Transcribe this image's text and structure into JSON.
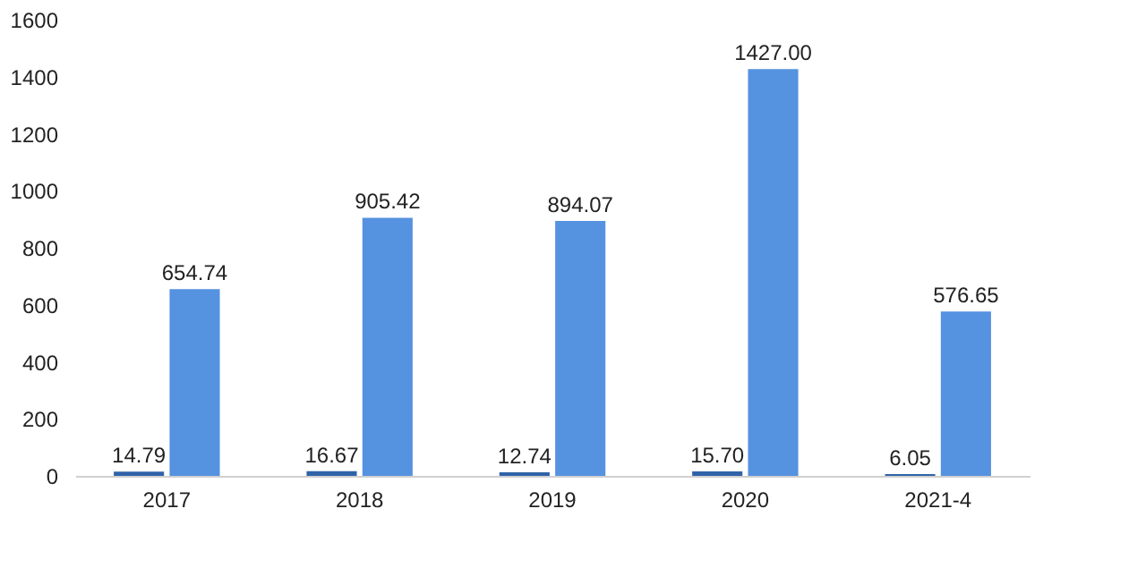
{
  "chart_data": {
    "type": "bar",
    "categories": [
      "2017",
      "2018",
      "2019",
      "2020",
      "2021-4"
    ],
    "series": [
      {
        "color": "#2f63a8",
        "values": [
          14.79,
          16.67,
          12.74,
          15.7,
          6.05
        ],
        "value_labels": [
          "14.79",
          "16.67",
          "12.74",
          "15.70",
          "6.05"
        ]
      },
      {
        "color": "#5592e0",
        "values": [
          654.74,
          905.42,
          894.07,
          1427.0,
          576.65
        ],
        "value_labels": [
          "654.74",
          "905.42",
          "894.07",
          "1427.00",
          "576.65"
        ]
      }
    ],
    "ylim": [
      0,
      1600
    ],
    "yticks": [
      0,
      200,
      400,
      600,
      800,
      1000,
      1200,
      1400,
      1600
    ],
    "grid": false,
    "legend": false
  }
}
